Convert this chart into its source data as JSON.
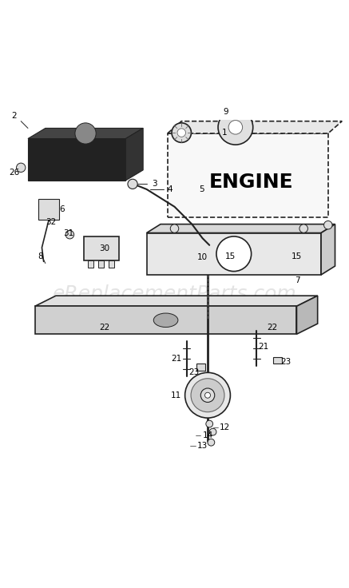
{
  "title": "",
  "bg_color": "#ffffff",
  "watermark": "eReplacementParts.com",
  "watermark_color": "#cccccc",
  "watermark_fontsize": 18,
  "fig_width": 4.37,
  "fig_height": 7.36,
  "dpi": 100
}
